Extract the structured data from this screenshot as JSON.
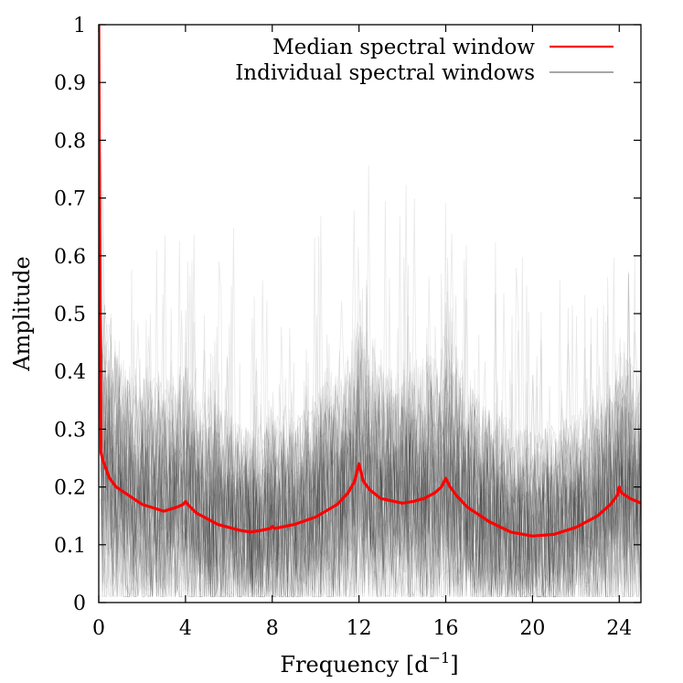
{
  "chart_data": {
    "type": "line",
    "xlabel_main": "Frequency [d",
    "xlabel_sup": "−1",
    "xlabel_close": "]",
    "ylabel": "Amplitude",
    "xlim": [
      0,
      25
    ],
    "ylim": [
      0,
      1
    ],
    "x_ticks": [
      0,
      4,
      8,
      12,
      16,
      20,
      24
    ],
    "x_tick_labels": [
      "0",
      "4",
      "8",
      "12",
      "16",
      "20",
      "24"
    ],
    "y_ticks": [
      0,
      0.1,
      0.2,
      0.3,
      0.4,
      0.5,
      0.6,
      0.7,
      0.8,
      0.9,
      1
    ],
    "y_tick_labels": [
      "0",
      "0.1",
      "0.2",
      "0.3",
      "0.4",
      "0.5",
      "0.6",
      "0.7",
      "0.8",
      "0.9",
      "1"
    ],
    "legend_position": "top-right",
    "series": [
      {
        "name": "Median spectral window",
        "color": "#ff0000",
        "x": [
          0,
          0.05,
          0.1,
          0.2,
          0.35,
          0.5,
          0.8,
          1.2,
          2.0,
          3.0,
          3.6,
          3.9,
          4.0,
          4.1,
          4.5,
          5.5,
          6.5,
          7.0,
          7.5,
          7.9,
          8.0,
          8.1,
          9.0,
          10.0,
          11.0,
          11.5,
          11.8,
          12.0,
          12.2,
          12.5,
          13.0,
          14.0,
          14.5,
          15.0,
          15.5,
          15.8,
          16.0,
          16.2,
          16.5,
          17.0,
          18.0,
          19.0,
          20.0,
          21.0,
          22.0,
          23.0,
          23.6,
          23.9,
          24.0,
          24.1,
          24.5,
          25.0
        ],
        "y": [
          1.0,
          0.6,
          0.26,
          0.245,
          0.23,
          0.215,
          0.2,
          0.19,
          0.17,
          0.158,
          0.165,
          0.17,
          0.175,
          0.17,
          0.155,
          0.135,
          0.125,
          0.122,
          0.125,
          0.128,
          0.132,
          0.128,
          0.135,
          0.148,
          0.17,
          0.19,
          0.21,
          0.24,
          0.21,
          0.195,
          0.18,
          0.172,
          0.175,
          0.18,
          0.19,
          0.2,
          0.215,
          0.2,
          0.185,
          0.165,
          0.14,
          0.122,
          0.115,
          0.118,
          0.13,
          0.15,
          0.17,
          0.185,
          0.2,
          0.19,
          0.18,
          0.172
        ]
      },
      {
        "name": "Individual spectral windows",
        "color": "#7f7f7f"
      }
    ]
  }
}
